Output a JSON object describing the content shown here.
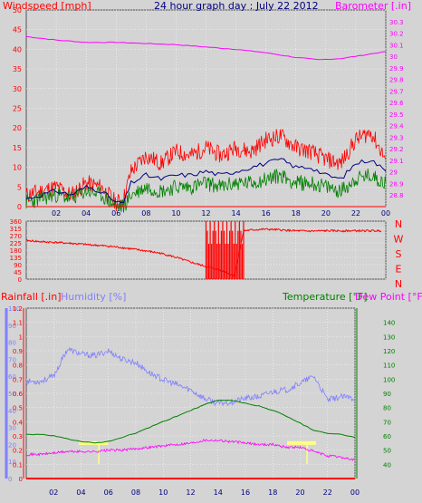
{
  "title": "24 hour graph day : July 22 2012",
  "colors": {
    "background": "#d4d4d4",
    "wind": "#ff0000",
    "gust_avg": "#000080",
    "wind_low": "#008000",
    "barometer": "#ff00ff",
    "direction": "#ff0000",
    "rainfall": "#ff0000",
    "humidity": "#8080ff",
    "temperature": "#008000",
    "dewpoint": "#ff00ff",
    "sun_markers": "#ffff80",
    "grid": "#ffffff"
  },
  "chart_data": [
    {
      "type": "line",
      "name": "wind-barometer",
      "left_label": "Windspeed [mph]",
      "right_label": "Barometer [.in]",
      "x_ticks": [
        "02",
        "04",
        "06",
        "08",
        "10",
        "12",
        "14",
        "16",
        "18",
        "20",
        "22",
        "00"
      ],
      "x_range": [
        0,
        24
      ],
      "left_ylim": [
        0,
        50
      ],
      "left_ticks": [
        "0",
        "5",
        "10",
        "15",
        "20",
        "25",
        "30",
        "35",
        "40",
        "45",
        "50"
      ],
      "right_ylim": [
        28.7,
        30.4
      ],
      "right_ticks": [
        "28.8",
        "28.9",
        "29",
        "29.1",
        "29.2",
        "29.3",
        "29.4",
        "29.5",
        "29.6",
        "29.7",
        "29.8",
        "29.9",
        "30",
        "30.1",
        "30.2",
        "30.3"
      ],
      "barometer": {
        "x": [
          0,
          2,
          4,
          6,
          8,
          10,
          12,
          14,
          16,
          18,
          19.5,
          21,
          22,
          24
        ],
        "y": [
          30.17,
          30.14,
          30.12,
          30.12,
          30.11,
          30.1,
          30.08,
          30.06,
          30.03,
          29.99,
          29.97,
          29.98,
          30,
          30.04
        ]
      },
      "wind_high": {
        "x": [
          0,
          1,
          2,
          3,
          4,
          5,
          6,
          6.5,
          7,
          8,
          9,
          10,
          11,
          12,
          13,
          14,
          15,
          16,
          17,
          18,
          19,
          20,
          21,
          22,
          23,
          24
        ],
        "y": [
          3,
          4,
          5,
          3,
          6,
          5,
          1,
          2,
          9,
          13,
          11,
          14,
          13,
          15,
          13,
          15,
          14,
          17,
          18,
          15,
          14,
          12,
          11,
          17,
          19,
          12
        ]
      },
      "wind_avg": {
        "x": [
          0,
          1,
          2,
          3,
          4,
          5,
          6,
          6.5,
          7,
          8,
          9,
          10,
          11,
          12,
          13,
          14,
          15,
          16,
          17,
          18,
          19,
          20,
          21,
          22,
          23,
          24
        ],
        "y": [
          2,
          3,
          4,
          3,
          5,
          4,
          1,
          1,
          6,
          8,
          7,
          8,
          8,
          9,
          8,
          9,
          10,
          11,
          12,
          10,
          10,
          8,
          7,
          11,
          12,
          9
        ]
      },
      "wind_low": {
        "x": [
          0,
          1,
          2,
          3,
          4,
          5,
          6,
          6.5,
          7,
          8,
          9,
          10,
          11,
          12,
          13,
          14,
          15,
          16,
          17,
          18,
          19,
          20,
          21,
          22,
          23,
          24
        ],
        "y": [
          1,
          2,
          3,
          2,
          4,
          3,
          0,
          0,
          3,
          5,
          4,
          5,
          5,
          6,
          5,
          6,
          6,
          7,
          8,
          6,
          6,
          5,
          4,
          7,
          8,
          6
        ]
      }
    },
    {
      "type": "line",
      "name": "wind-direction",
      "x_ticks": [
        "02",
        "04",
        "06",
        "08",
        "10",
        "12",
        "14",
        "16",
        "18",
        "20",
        "22",
        "00"
      ],
      "x_range": [
        0,
        24
      ],
      "ylim": [
        0,
        360
      ],
      "left_ticks": [
        "0",
        "45",
        "90",
        "135",
        "180",
        "225",
        "270",
        "315",
        "360"
      ],
      "right_ticks": [
        "N",
        "W",
        "S",
        "E",
        "N"
      ],
      "direction": {
        "x": [
          0,
          1,
          2,
          3,
          4,
          5,
          6,
          7,
          8,
          9,
          10,
          11,
          12,
          13,
          13.9,
          14.5,
          15,
          16,
          17,
          18,
          19,
          20,
          21,
          22,
          23,
          23.7
        ],
        "y": [
          240,
          232,
          228,
          222,
          215,
          208,
          200,
          188,
          175,
          160,
          135,
          105,
          78,
          55,
          20,
          300,
          305,
          310,
          305,
          300,
          298,
          300,
          300,
          300,
          300,
          300
        ]
      }
    },
    {
      "type": "line",
      "name": "rain-humidity-temperature",
      "rain_label": "Rainfall [.in]",
      "humidity_label": "Humidity [%]",
      "temp_label": "Temperature [°F]",
      "dew_label": "Dew Point [°F]",
      "x_ticks": [
        "02",
        "04",
        "06",
        "08",
        "10",
        "12",
        "14",
        "16",
        "18",
        "20",
        "22",
        "00"
      ],
      "x_range": [
        0,
        24
      ],
      "humidity_ylim": [
        0,
        100
      ],
      "humidity_ticks": [
        "0",
        "10",
        "20",
        "30",
        "40",
        "50",
        "60",
        "70",
        "80",
        "90",
        "100"
      ],
      "rain_ylim": [
        0,
        1.2
      ],
      "rain_ticks": [
        "0",
        "0.1",
        "0.2",
        "0.3",
        "0.4",
        "0.5",
        "0.6",
        "0.7",
        "0.8",
        "0.9",
        "1",
        "1.1",
        "1.2"
      ],
      "temp_ylim": [
        30,
        150
      ],
      "temp_ticks": [
        "40",
        "50",
        "60",
        "70",
        "80",
        "90",
        "100",
        "110",
        "120",
        "130",
        "140"
      ],
      "humidity": {
        "x": [
          0,
          1,
          2,
          3,
          4,
          5,
          6,
          7,
          8,
          9,
          10,
          11,
          12,
          13,
          14,
          15,
          16,
          17,
          18,
          19,
          20,
          21,
          22,
          23,
          24
        ],
        "y": [
          57,
          57,
          60,
          76,
          73,
          72,
          75,
          70,
          68,
          62,
          58,
          55,
          52,
          47,
          44,
          45,
          47,
          48,
          51,
          52,
          56,
          60,
          46,
          48,
          47
        ]
      },
      "temperature": {
        "x": [
          0,
          1,
          2,
          3,
          4,
          5,
          6,
          7,
          8,
          9,
          10,
          11,
          12,
          13,
          14,
          15,
          16,
          17,
          18,
          19,
          20,
          21,
          22,
          23,
          24
        ],
        "y": [
          61,
          61,
          60,
          58,
          56,
          55,
          56,
          59,
          62,
          66,
          70,
          74,
          78,
          82,
          85,
          85,
          83,
          81,
          78,
          74,
          69,
          64,
          62,
          61,
          59
        ]
      },
      "dewpoint": {
        "x": [
          0,
          1,
          2,
          3,
          4,
          5,
          6,
          7,
          8,
          9,
          10,
          11,
          12,
          13,
          14,
          15,
          16,
          17,
          18,
          19,
          20,
          21,
          22,
          23,
          24
        ],
        "y": [
          47,
          47,
          48,
          49,
          49,
          49,
          50,
          50,
          51,
          52,
          53,
          54,
          55,
          57,
          57,
          56,
          55,
          54,
          54,
          52,
          52,
          49,
          46,
          45,
          43
        ]
      },
      "rainfall": {
        "x": [
          0,
          24
        ],
        "y": [
          0,
          0
        ]
      },
      "sun_markers": [
        5.3,
        20.5
      ]
    }
  ]
}
